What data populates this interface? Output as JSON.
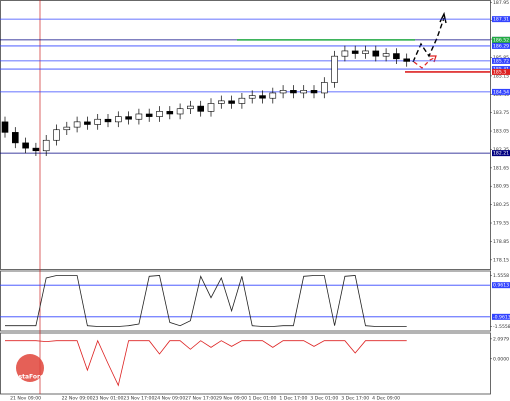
{
  "chart_data": {
    "type": "candlestick",
    "logo": "InstaForex",
    "categories": [
      null,
      null,
      "21 Nov 09:00",
      null,
      null,
      null,
      null,
      "22 Nov 09:00",
      null,
      null,
      "23 Nov 01:00",
      null,
      null,
      "23 Nov 17:00",
      null,
      null,
      "24 Nov 09:00",
      null,
      null,
      "27 Nov 17:00",
      null,
      null,
      "29 Nov 09:00",
      null,
      null,
      "1 Dec 01:00",
      null,
      null,
      "1 Dec 17:00",
      null,
      null,
      "3 Dec 01:00",
      null,
      null,
      "3 Dec 17:00",
      null,
      null,
      "4 Dec 09:00",
      null,
      null
    ],
    "open": [
      183.4,
      183.0,
      182.6,
      182.4,
      182.3,
      182.7,
      183.1,
      183.2,
      183.4,
      183.3,
      183.5,
      183.4,
      183.6,
      183.5,
      183.7,
      183.6,
      183.8,
      183.7,
      183.9,
      184.0,
      183.8,
      184.1,
      184.2,
      184.1,
      184.3,
      184.4,
      184.3,
      184.5,
      184.6,
      184.5,
      184.6,
      184.5,
      184.9,
      185.9,
      186.1,
      186.0,
      186.1,
      185.9,
      186.0,
      185.8
    ],
    "high": [
      183.6,
      183.2,
      182.8,
      182.6,
      182.9,
      183.3,
      183.4,
      183.6,
      183.6,
      183.7,
      183.7,
      183.8,
      183.8,
      183.9,
      183.9,
      184.0,
      184.0,
      184.1,
      184.2,
      184.2,
      184.3,
      184.4,
      184.4,
      184.5,
      184.6,
      184.6,
      184.7,
      184.8,
      184.8,
      184.8,
      184.8,
      185.1,
      186.1,
      186.3,
      186.3,
      186.3,
      186.3,
      186.2,
      186.2,
      186.0
    ],
    "low": [
      182.8,
      182.4,
      182.2,
      182.1,
      182.1,
      182.5,
      182.9,
      183.0,
      183.1,
      183.1,
      183.2,
      183.2,
      183.3,
      183.3,
      183.4,
      183.4,
      183.5,
      183.5,
      183.7,
      183.6,
      183.6,
      183.9,
      183.9,
      183.9,
      184.1,
      184.1,
      184.1,
      184.3,
      184.3,
      184.3,
      184.3,
      184.3,
      184.7,
      185.7,
      185.8,
      185.8,
      185.7,
      185.7,
      185.6,
      185.5
    ],
    "close": [
      183.0,
      182.6,
      182.4,
      182.3,
      182.7,
      183.1,
      183.2,
      183.4,
      183.3,
      183.5,
      183.4,
      183.6,
      183.5,
      183.7,
      183.6,
      183.8,
      183.7,
      183.9,
      184.0,
      183.8,
      184.1,
      184.2,
      184.1,
      184.3,
      184.4,
      184.3,
      184.5,
      184.6,
      184.5,
      184.6,
      184.5,
      184.9,
      185.9,
      186.1,
      186.0,
      186.1,
      185.9,
      186.0,
      185.8,
      185.7
    ],
    "ylim": [
      177.8,
      188.0
    ],
    "yticks": [
      178.15,
      178.85,
      179.55,
      180.25,
      180.95,
      181.65,
      182.35,
      183.05,
      183.75,
      184.45,
      185.15,
      185.85,
      186.55,
      187.25,
      187.95
    ],
    "levels": [
      {
        "value": 187.31,
        "color": "#3344ff"
      },
      {
        "value": 186.52,
        "color": "#000080"
      },
      {
        "value": 186.52,
        "color": "#22aa44"
      },
      {
        "value": 186.29,
        "color": "#3344ff"
      },
      {
        "value": 185.72,
        "color": "#3344ff"
      },
      {
        "value": 185.41,
        "color": "#3344ff"
      },
      {
        "value": 185.3,
        "color": "#dd2222"
      },
      {
        "value": 184.54,
        "color": "#3344ff"
      },
      {
        "value": 182.21,
        "color": "#000080"
      }
    ],
    "indicators": [
      {
        "color": "#222222",
        "ylim": [
          -1.7,
          1.7
        ],
        "yticks": [
          1.5558,
          -1.5558
        ],
        "levels": [
          {
            "value": 0.9613,
            "color": "#3344ff"
          },
          {
            "value": -0.9613,
            "color": "#3344ff"
          }
        ],
        "values": [
          -1.5,
          -1.5,
          -1.5,
          -1.5,
          1.4,
          1.55,
          1.55,
          1.55,
          -1.5,
          -1.55,
          -1.55,
          -1.55,
          -1.5,
          -1.4,
          1.5,
          1.55,
          -1.3,
          -1.5,
          -1.2,
          1.5,
          0.2,
          1.4,
          -0.6,
          1.5,
          -1.5,
          -1.55,
          -1.55,
          -1.5,
          -1.5,
          1.5,
          1.55,
          1.55,
          -1.5,
          1.5,
          1.55,
          -1.5,
          -1.55,
          -1.55,
          -1.55,
          -1.55
        ]
      },
      {
        "color": "#dd2222",
        "ylim": [
          -3.5,
          2.5
        ],
        "yticks": [
          2.0979,
          {
            "value": 0,
            "label": "0.0000"
          }
        ],
        "levels": [],
        "values": [
          1.9,
          1.9,
          1.9,
          1.9,
          1.8,
          1.9,
          1.9,
          1.9,
          -1.2,
          1.9,
          -0.5,
          -2.8,
          1.9,
          1.9,
          1.9,
          0.5,
          1.9,
          1.9,
          1.0,
          1.9,
          1.2,
          1.9,
          1.3,
          1.9,
          1.9,
          1.9,
          1.2,
          1.9,
          1.9,
          1.9,
          1.3,
          1.9,
          1.9,
          1.9,
          0.6,
          1.9,
          1.9,
          1.9,
          1.9,
          1.9
        ]
      }
    ]
  }
}
